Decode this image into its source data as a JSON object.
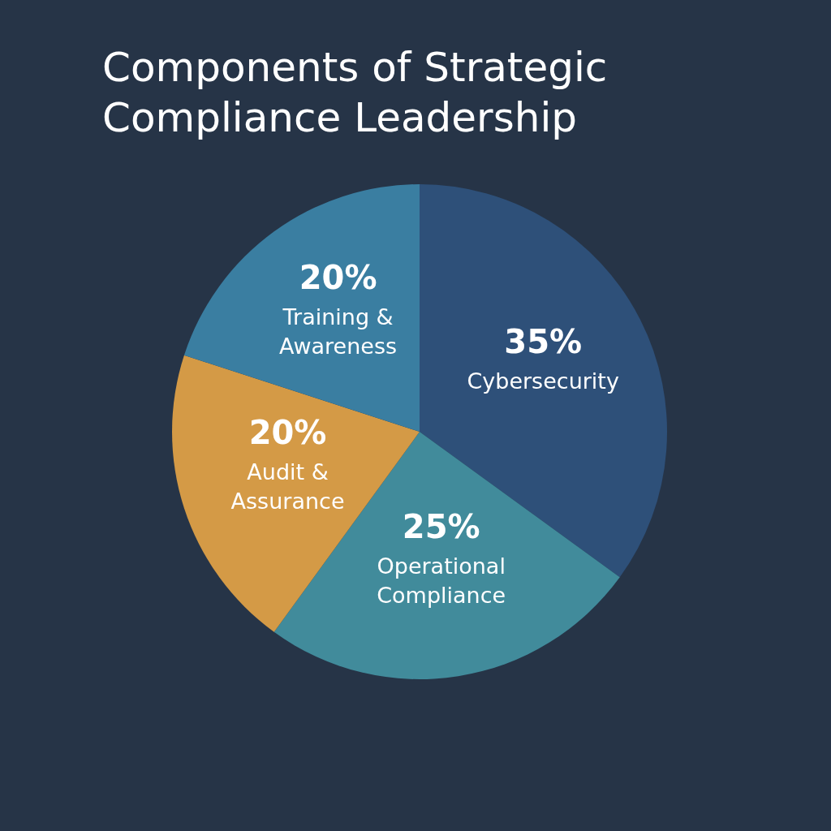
{
  "chart_data": {
    "type": "pie",
    "title": "Components of Strategic Compliance Leadership",
    "categories": [
      "Cybersecurity",
      "Operational Compliance",
      "Audit & Assurance",
      "Training & Awareness"
    ],
    "values": [
      35,
      25,
      20,
      20
    ],
    "colors": [
      "#2e5079",
      "#418b9b",
      "#d49a46",
      "#3a7ea1"
    ],
    "value_labels": [
      "35%",
      "25%",
      "20%",
      "20%"
    ]
  }
}
